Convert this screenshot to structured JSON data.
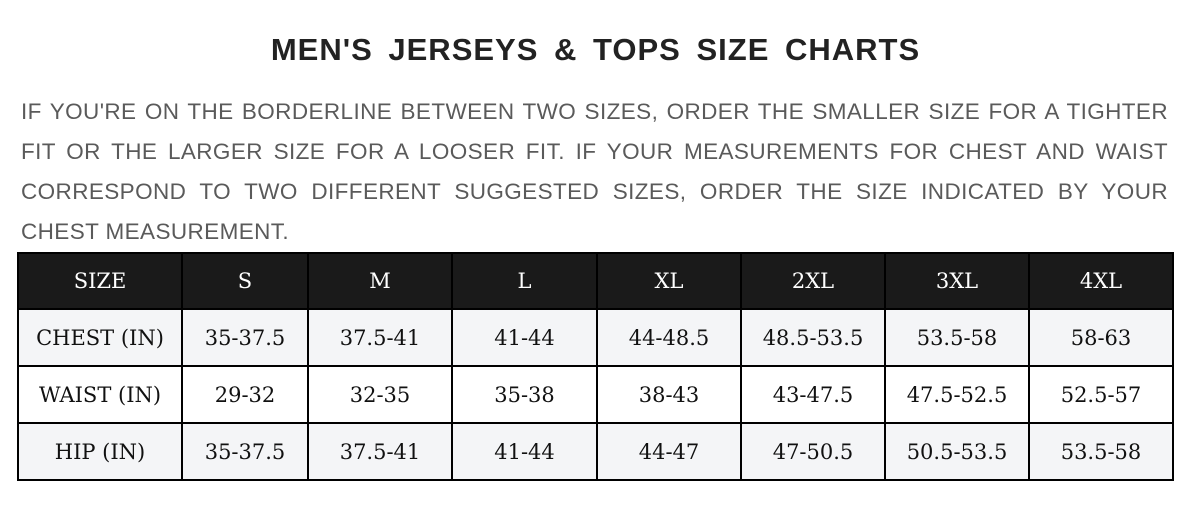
{
  "title": "MEN'S JERSEYS & TOPS SIZE CHARTS",
  "description": "IF YOU'RE ON THE BORDERLINE BETWEEN TWO SIZES, ORDER THE SMALLER SIZE FOR A TIGHTER FIT OR THE LARGER SIZE FOR A LOOSER FIT. IF YOUR MEASUREMENTS FOR CHEST AND WAIST CORRESPOND TO TWO DIFFERENT SUGGESTED SIZES, ORDER THE SIZE INDICATED BY YOUR CHEST MEASUREMENT.",
  "colors": {
    "header_bg": "#1a1a1a",
    "alt_row": "#f4f5f7",
    "text_gray": "#5a5a5a"
  },
  "table": {
    "headers": [
      "SIZE",
      "S",
      "M",
      "L",
      "XL",
      "2XL",
      "3XL",
      "4XL"
    ],
    "rows": [
      [
        "CHEST (IN)",
        "35-37.5",
        "37.5-41",
        "41-44",
        "44-48.5",
        "48.5-53.5",
        "53.5-58",
        "58-63"
      ],
      [
        "WAIST (IN)",
        "29-32",
        "32-35",
        "35-38",
        "38-43",
        "43-47.5",
        "47.5-52.5",
        "52.5-57"
      ],
      [
        "HIP (IN)",
        "35-37.5",
        "37.5-41",
        "41-44",
        "44-47",
        "47-50.5",
        "50.5-53.5",
        "53.5-58"
      ]
    ]
  }
}
